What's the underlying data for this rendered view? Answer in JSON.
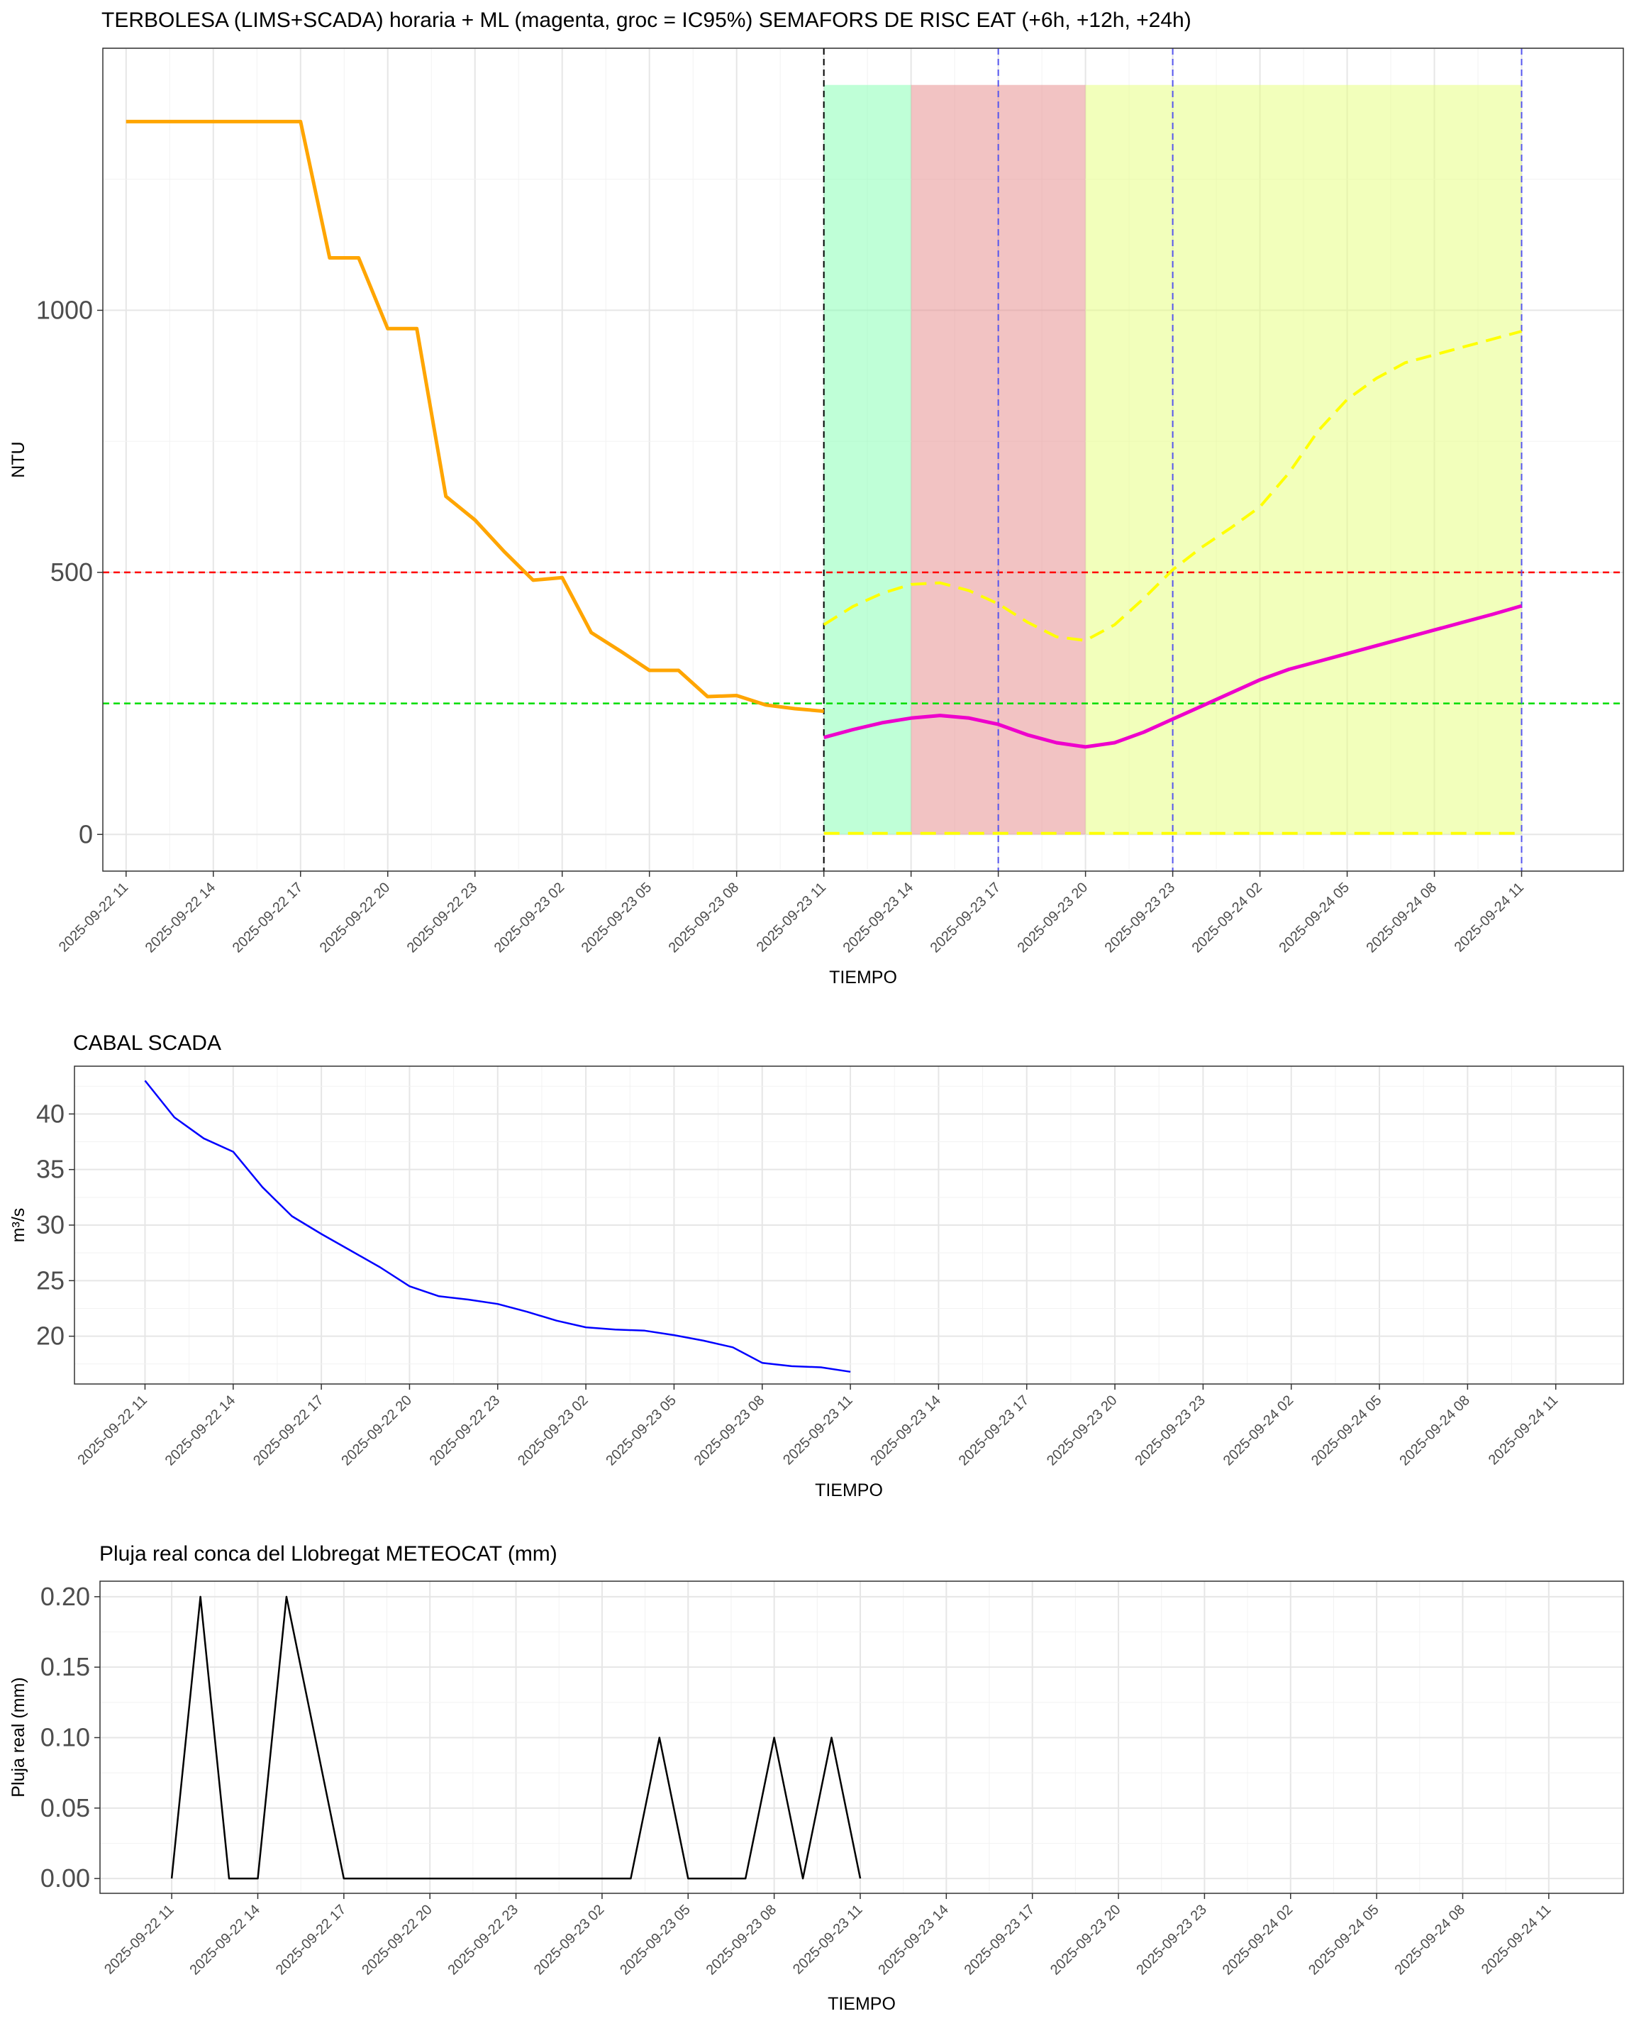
{
  "x_ticks": [
    "2025-09-22 11",
    "2025-09-22 14",
    "2025-09-22 17",
    "2025-09-22 20",
    "2025-09-22 23",
    "2025-09-23 02",
    "2025-09-23 05",
    "2025-09-23 08",
    "2025-09-23 11",
    "2025-09-23 14",
    "2025-09-23 17",
    "2025-09-23 20",
    "2025-09-23 23",
    "2025-09-24 02",
    "2025-09-24 05",
    "2025-09-24 08",
    "2025-09-24 11"
  ],
  "colors": {
    "observed": "#FFA500",
    "forecast": "#EE00CC",
    "ci95": "#FFFF00",
    "flow": "#0000FF",
    "rain": "#000000",
    "threshold_high": "#FF0000",
    "threshold_low": "#00DD00",
    "semaphore_green": "#7FFFB0",
    "semaphore_red": "#E58888",
    "semaphore_yellow": "#E5FF77",
    "horizon_marker": "#5555EE"
  },
  "chart_data": [
    {
      "type": "line",
      "title": "TERBOLESA (LIMS+SCADA) horaria + ML (magenta, groc = IC95%) SEMAFORS DE RISC EAT (+6h, +12h, +24h)",
      "xlabel": "TIEMPO",
      "ylabel": "NTU",
      "xlim": [
        -0.8,
        51.5
      ],
      "ylim": [
        -70,
        1500
      ],
      "yticks": [
        0,
        500,
        1000
      ],
      "grid": true,
      "series": [
        {
          "name": "observed",
          "x": [
            0,
            1,
            2,
            3,
            4,
            5,
            6,
            7,
            8,
            9,
            10,
            11,
            12,
            13,
            14,
            15,
            16,
            17,
            18,
            19,
            20,
            21,
            22,
            23,
            24
          ],
          "y": [
            1360,
            1360,
            1360,
            1360,
            1360,
            1360,
            1360,
            1100,
            1100,
            965,
            965,
            645,
            600,
            540,
            485,
            490,
            385,
            350,
            313,
            313,
            263,
            265,
            247,
            240,
            235
          ]
        },
        {
          "name": "forecast",
          "x": [
            24,
            25,
            26,
            27,
            28,
            29,
            30,
            31,
            32,
            33,
            34,
            35,
            36,
            37,
            38,
            39,
            40,
            41,
            42,
            43,
            44,
            45,
            46,
            47,
            48
          ],
          "y": [
            185,
            200,
            213,
            222,
            227,
            222,
            210,
            190,
            175,
            167,
            175,
            195,
            220,
            245,
            270,
            295,
            315,
            330,
            345,
            360,
            375,
            390,
            405,
            420,
            436
          ]
        },
        {
          "name": "ci95_upper",
          "x": [
            24,
            25,
            26,
            27,
            28,
            29,
            30,
            31,
            32,
            33,
            34,
            35,
            36,
            37,
            38,
            39,
            40,
            41,
            42,
            43,
            44,
            45,
            46,
            47,
            48
          ],
          "y": [
            400,
            435,
            460,
            477,
            480,
            465,
            440,
            405,
            377,
            370,
            400,
            450,
            505,
            548,
            585,
            625,
            690,
            770,
            830,
            870,
            900,
            915,
            930,
            945,
            960
          ]
        },
        {
          "name": "ci95_lower",
          "x": [
            24,
            48
          ],
          "y": [
            2,
            2
          ]
        }
      ],
      "reference_lines": [
        {
          "axis": "y",
          "value": 500
        },
        {
          "axis": "y",
          "value": 250
        },
        {
          "axis": "x",
          "value": 24
        },
        {
          "axis": "x",
          "value": 30
        },
        {
          "axis": "x",
          "value": 36
        },
        {
          "axis": "x",
          "value": 48
        }
      ],
      "semaphores": [
        {
          "from": 24,
          "to": 27,
          "level": "green"
        },
        {
          "from": 27,
          "to": 33,
          "level": "red"
        },
        {
          "from": 33,
          "to": 48,
          "level": "yellow"
        }
      ],
      "band_top": 1430
    },
    {
      "type": "line",
      "title": "CABAL SCADA",
      "xlabel": "TIEMPO",
      "ylabel": "m³/s",
      "xlim": [
        -2.4,
        50.3
      ],
      "ylim": [
        15.7,
        44.3
      ],
      "yticks": [
        20,
        25,
        30,
        35,
        40
      ],
      "grid": true,
      "series": [
        {
          "name": "flow",
          "x": [
            0,
            1,
            2,
            3,
            4,
            5,
            6,
            7,
            8,
            9,
            10,
            11,
            12,
            13,
            14,
            15,
            16,
            17,
            18,
            19,
            20,
            21,
            22,
            23,
            24
          ],
          "y": [
            43.0,
            39.7,
            37.8,
            36.6,
            33.4,
            30.8,
            29.2,
            27.7,
            26.2,
            24.5,
            23.6,
            23.3,
            22.9,
            22.2,
            21.4,
            20.8,
            20.6,
            20.5,
            20.1,
            19.6,
            19.0,
            17.6,
            17.3,
            17.2,
            16.8
          ]
        }
      ]
    },
    {
      "type": "line",
      "title": "Pluja real conca del Llobregat METEOCAT (mm)",
      "xlabel": "TIEMPO",
      "ylabel": "Pluja real (mm)",
      "xlim": [
        -2.5,
        50.6
      ],
      "ylim": [
        -0.0105,
        0.211
      ],
      "yticks": [
        0.0,
        0.05,
        0.1,
        0.15,
        0.2
      ],
      "ytick_labels": [
        "0.00",
        "0.05",
        "0.10",
        "0.15",
        "0.20"
      ],
      "grid": true,
      "series": [
        {
          "name": "rain",
          "x": [
            0,
            1,
            2,
            3,
            4,
            5,
            6,
            7,
            8,
            9,
            10,
            11,
            12,
            13,
            14,
            15,
            16,
            17,
            18,
            19,
            20,
            21,
            22,
            23,
            24
          ],
          "y": [
            0,
            0.2,
            0,
            0,
            0.2,
            0.1,
            0,
            0,
            0,
            0,
            0,
            0,
            0,
            0,
            0,
            0,
            0,
            0.1,
            0,
            0,
            0,
            0.1,
            0,
            0.1,
            0
          ]
        }
      ]
    }
  ]
}
